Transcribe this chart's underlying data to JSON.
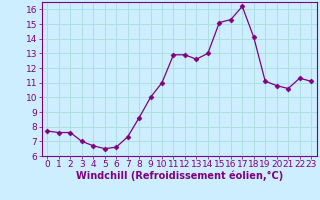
{
  "x": [
    0,
    1,
    2,
    3,
    4,
    5,
    6,
    7,
    8,
    9,
    10,
    11,
    12,
    13,
    14,
    15,
    16,
    17,
    18,
    19,
    20,
    21,
    22,
    23
  ],
  "y": [
    7.7,
    7.6,
    7.6,
    7.0,
    6.7,
    6.5,
    6.6,
    7.3,
    8.6,
    10.0,
    11.0,
    12.9,
    12.9,
    12.6,
    13.0,
    15.1,
    15.3,
    16.2,
    14.1,
    11.1,
    10.8,
    10.6,
    11.3,
    11.1
  ],
  "line_color": "#800080",
  "marker": "D",
  "marker_size": 2.5,
  "bg_color": "#cceeff",
  "grid_color": "#aadddd",
  "xlabel": "Windchill (Refroidissement éolien,°C)",
  "xlabel_fontsize": 7,
  "ylim": [
    6,
    16.5
  ],
  "xlim": [
    -0.5,
    23.5
  ],
  "yticks": [
    6,
    7,
    8,
    9,
    10,
    11,
    12,
    13,
    14,
    15,
    16
  ],
  "xticks": [
    0,
    1,
    2,
    3,
    4,
    5,
    6,
    7,
    8,
    9,
    10,
    11,
    12,
    13,
    14,
    15,
    16,
    17,
    18,
    19,
    20,
    21,
    22,
    23
  ],
  "tick_fontsize": 6.5,
  "spine_color": "#800080"
}
